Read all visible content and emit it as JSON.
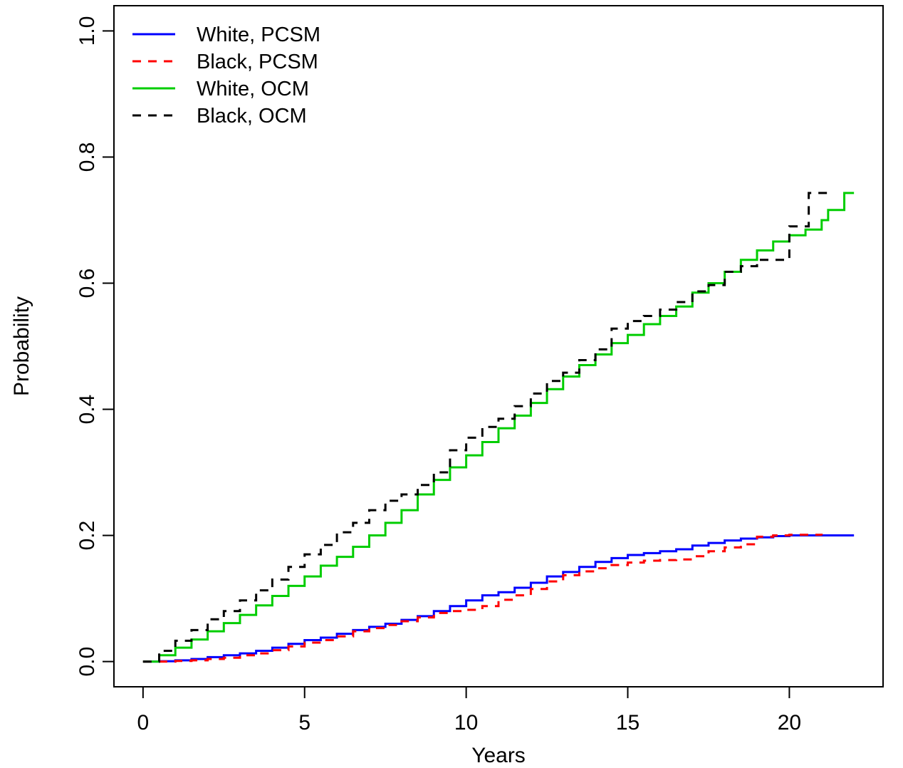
{
  "chart_data": {
    "type": "line",
    "title": "",
    "xlabel": "Years",
    "ylabel": "Probability",
    "xlim": [
      -0.9,
      22.9
    ],
    "ylim": [
      -0.04,
      1.04
    ],
    "x_ticks": [
      0,
      5,
      10,
      15,
      20
    ],
    "y_ticks": [
      0.0,
      0.2,
      0.4,
      0.6,
      0.8,
      1.0
    ],
    "x_tick_labels": [
      "0",
      "5",
      "10",
      "15",
      "20"
    ],
    "y_tick_labels": [
      "0.0",
      "0.2",
      "0.4",
      "0.6",
      "0.8",
      "1.0"
    ],
    "grid": false,
    "legend_position": "top-left",
    "series": [
      {
        "name": "White, PCSM",
        "color": "#0000ff",
        "dash": "solid",
        "points": [
          [
            0,
            0
          ],
          [
            0.5,
            0.0005
          ],
          [
            1,
            0.002
          ],
          [
            1.5,
            0.004
          ],
          [
            2,
            0.007
          ],
          [
            2.5,
            0.01
          ],
          [
            3,
            0.013
          ],
          [
            3.5,
            0.017
          ],
          [
            4,
            0.022
          ],
          [
            4.5,
            0.028
          ],
          [
            5,
            0.034
          ],
          [
            5.5,
            0.038
          ],
          [
            6,
            0.044
          ],
          [
            6.5,
            0.05
          ],
          [
            7,
            0.055
          ],
          [
            7.5,
            0.06
          ],
          [
            8,
            0.066
          ],
          [
            8.5,
            0.072
          ],
          [
            9,
            0.08
          ],
          [
            9.5,
            0.088
          ],
          [
            10,
            0.097
          ],
          [
            10.5,
            0.105
          ],
          [
            11,
            0.11
          ],
          [
            11.5,
            0.117
          ],
          [
            12,
            0.125
          ],
          [
            12.5,
            0.135
          ],
          [
            13,
            0.142
          ],
          [
            13.5,
            0.15
          ],
          [
            14,
            0.158
          ],
          [
            14.5,
            0.164
          ],
          [
            15,
            0.169
          ],
          [
            15.5,
            0.172
          ],
          [
            16,
            0.175
          ],
          [
            16.5,
            0.178
          ],
          [
            17,
            0.184
          ],
          [
            17.5,
            0.188
          ],
          [
            18,
            0.192
          ],
          [
            18.5,
            0.195
          ],
          [
            19,
            0.197
          ],
          [
            19.5,
            0.199
          ],
          [
            20,
            0.2
          ],
          [
            21,
            0.2
          ],
          [
            22,
            0.2
          ]
        ]
      },
      {
        "name": "Black, PCSM",
        "color": "#ff0000",
        "dash": "dashed",
        "points": [
          [
            0,
            0
          ],
          [
            0.5,
            0
          ],
          [
            1,
            0.001
          ],
          [
            1.5,
            0.002
          ],
          [
            2,
            0.004
          ],
          [
            2.5,
            0.006
          ],
          [
            3,
            0.01
          ],
          [
            3.5,
            0.013
          ],
          [
            4,
            0.018
          ],
          [
            4.5,
            0.024
          ],
          [
            5,
            0.03
          ],
          [
            5.5,
            0.034
          ],
          [
            6,
            0.04
          ],
          [
            6.5,
            0.048
          ],
          [
            7,
            0.053
          ],
          [
            7.5,
            0.058
          ],
          [
            8,
            0.064
          ],
          [
            8.5,
            0.07
          ],
          [
            9,
            0.077
          ],
          [
            9.5,
            0.08
          ],
          [
            10,
            0.082
          ],
          [
            10.5,
            0.088
          ],
          [
            11,
            0.098
          ],
          [
            11.5,
            0.105
          ],
          [
            12,
            0.115
          ],
          [
            12.5,
            0.127
          ],
          [
            13,
            0.137
          ],
          [
            13.5,
            0.143
          ],
          [
            14,
            0.148
          ],
          [
            14.5,
            0.153
          ],
          [
            15,
            0.157
          ],
          [
            15.5,
            0.16
          ],
          [
            16,
            0.161
          ],
          [
            16.5,
            0.162
          ],
          [
            17,
            0.167
          ],
          [
            17.5,
            0.175
          ],
          [
            18,
            0.181
          ],
          [
            18.5,
            0.186
          ],
          [
            19,
            0.198
          ],
          [
            19.5,
            0.2
          ],
          [
            20,
            0.201
          ],
          [
            21,
            0.2
          ]
        ]
      },
      {
        "name": "White, OCM",
        "color": "#00cd00",
        "dash": "solid",
        "points": [
          [
            0,
            0
          ],
          [
            0.5,
            0.01
          ],
          [
            1,
            0.022
          ],
          [
            1.5,
            0.035
          ],
          [
            2,
            0.048
          ],
          [
            2.5,
            0.061
          ],
          [
            3,
            0.074
          ],
          [
            3.5,
            0.089
          ],
          [
            4,
            0.104
          ],
          [
            4.5,
            0.12
          ],
          [
            5,
            0.135
          ],
          [
            5.5,
            0.152
          ],
          [
            6,
            0.166
          ],
          [
            6.5,
            0.182
          ],
          [
            7,
            0.2
          ],
          [
            7.5,
            0.22
          ],
          [
            8,
            0.24
          ],
          [
            8.5,
            0.265
          ],
          [
            9,
            0.288
          ],
          [
            9.5,
            0.308
          ],
          [
            10,
            0.327
          ],
          [
            10.5,
            0.348
          ],
          [
            11,
            0.37
          ],
          [
            11.5,
            0.39
          ],
          [
            12,
            0.41
          ],
          [
            12.5,
            0.432
          ],
          [
            13,
            0.452
          ],
          [
            13.5,
            0.47
          ],
          [
            14,
            0.487
          ],
          [
            14.5,
            0.505
          ],
          [
            15,
            0.518
          ],
          [
            15.5,
            0.535
          ],
          [
            16,
            0.548
          ],
          [
            16.5,
            0.563
          ],
          [
            17,
            0.585
          ],
          [
            17.5,
            0.6
          ],
          [
            18,
            0.618
          ],
          [
            18.5,
            0.637
          ],
          [
            19,
            0.652
          ],
          [
            19.5,
            0.666
          ],
          [
            20,
            0.676
          ],
          [
            20.5,
            0.685
          ],
          [
            21,
            0.7
          ],
          [
            21.2,
            0.716
          ],
          [
            21.7,
            0.716
          ],
          [
            21.7,
            0.743
          ],
          [
            22,
            0.743
          ]
        ]
      },
      {
        "name": "Black, OCM",
        "color": "#000000",
        "dash": "dashed",
        "points": [
          [
            0,
            0
          ],
          [
            0.5,
            0.017
          ],
          [
            1,
            0.033
          ],
          [
            1.5,
            0.05
          ],
          [
            2,
            0.067
          ],
          [
            2.5,
            0.08
          ],
          [
            3,
            0.097
          ],
          [
            3.5,
            0.113
          ],
          [
            4,
            0.13
          ],
          [
            4.5,
            0.15
          ],
          [
            5,
            0.17
          ],
          [
            5.5,
            0.185
          ],
          [
            6,
            0.205
          ],
          [
            6.5,
            0.22
          ],
          [
            7,
            0.24
          ],
          [
            7.5,
            0.255
          ],
          [
            8,
            0.265
          ],
          [
            8.5,
            0.28
          ],
          [
            9,
            0.3
          ],
          [
            9.5,
            0.335
          ],
          [
            10,
            0.355
          ],
          [
            10.5,
            0.372
          ],
          [
            11,
            0.385
          ],
          [
            11.5,
            0.405
          ],
          [
            12,
            0.425
          ],
          [
            12.5,
            0.445
          ],
          [
            13,
            0.458
          ],
          [
            13.5,
            0.478
          ],
          [
            14,
            0.495
          ],
          [
            14.5,
            0.528
          ],
          [
            15,
            0.54
          ],
          [
            15.5,
            0.548
          ],
          [
            16,
            0.558
          ],
          [
            16.5,
            0.57
          ],
          [
            17,
            0.587
          ],
          [
            17.5,
            0.597
          ],
          [
            18,
            0.618
          ],
          [
            18.5,
            0.627
          ],
          [
            19,
            0.637
          ],
          [
            20,
            0.637
          ],
          [
            20,
            0.69
          ],
          [
            20.6,
            0.69
          ],
          [
            20.6,
            0.743
          ],
          [
            21.2,
            0.743
          ]
        ]
      }
    ]
  }
}
